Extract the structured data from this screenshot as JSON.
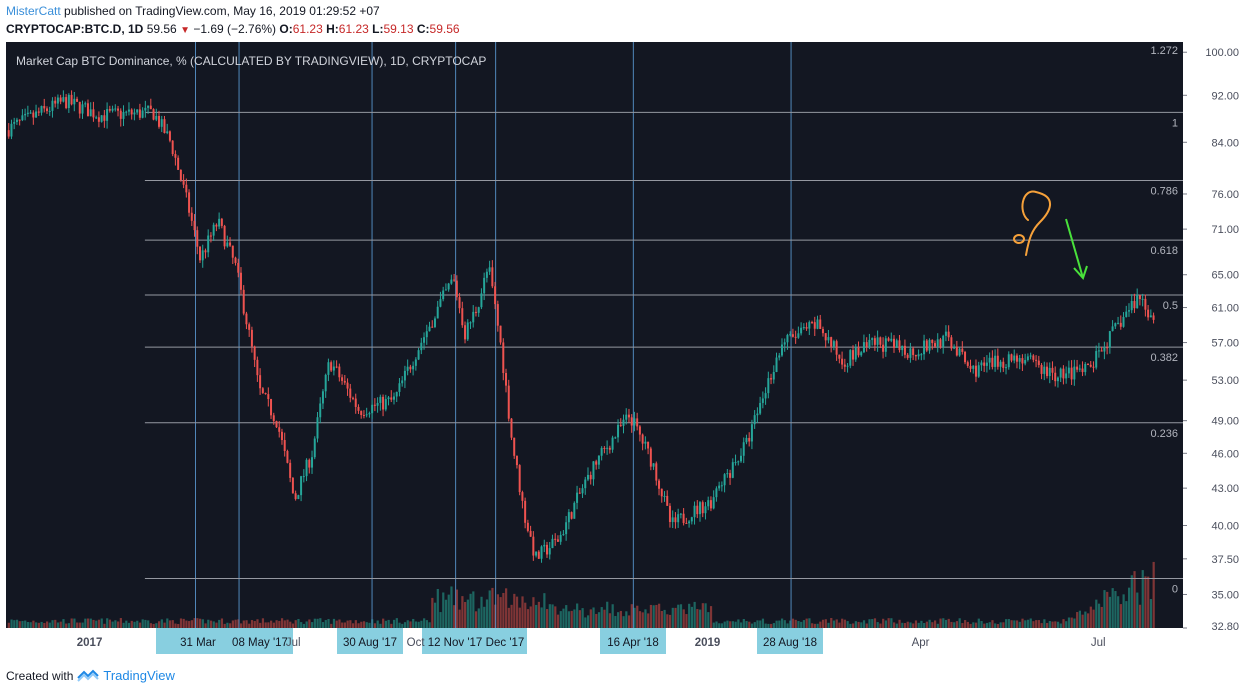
{
  "header": {
    "user": "MisterCatt",
    "published_text": "published on TradingView.com, May 16, 2019 01:29:52 +07",
    "symbol": "CRYPTOCAP:BTC.D, 1D",
    "last": "59.56",
    "change": "−1.69 (−2.76%)",
    "o_label": "O:",
    "o_value": "61.23",
    "h_label": "H:",
    "h_value": "61.23",
    "l_label": "L:",
    "l_value": "59.13",
    "c_label": "C:",
    "c_value": "59.56"
  },
  "footer": {
    "created_with": "Created with",
    "brand": "TradingView"
  },
  "colors": {
    "bg": "#131722",
    "up": "#26a69a",
    "down": "#ef5350",
    "fib": "#9598a1",
    "vline": "#5b9bd5",
    "callout_bg": "#88cfe0",
    "annotation_orange": "#f6a13a",
    "annotation_green": "#49e23b"
  },
  "chart_data": {
    "type": "candlestick",
    "title": "Market Cap BTC Dominance, % (CALCULATED BY TRADINGVIEW), 1D, CRYPTOCAP",
    "y_scale": "log",
    "ylim": [
      32.8,
      102
    ],
    "y_ticks": [
      "100.00",
      "92.00",
      "84.00",
      "76.00",
      "71.00",
      "65.00",
      "61.00",
      "57.00",
      "53.00",
      "49.00",
      "46.00",
      "43.00",
      "40.00",
      "37.50",
      "35.00",
      "32.80"
    ],
    "x_tick_labels": [
      "2017",
      "Jul",
      "Oct",
      "2019",
      "Apr",
      "Jul"
    ],
    "fib_levels": [
      {
        "label": "1.272",
        "value": 102.0
      },
      {
        "label": "1",
        "value": 89.0
      },
      {
        "label": "0.786",
        "value": 78.0
      },
      {
        "label": "0.618",
        "value": 69.5
      },
      {
        "label": "0.5",
        "value": 62.5
      },
      {
        "label": "0.382",
        "value": 56.5
      },
      {
        "label": "0.236",
        "value": 48.8
      },
      {
        "label": "0",
        "value": 36.1
      }
    ],
    "date_markers": [
      "31 Mar",
      "08 May '17",
      "30 Aug '17",
      "12 Nov '17",
      "Dec '17",
      "16 Apr '18",
      "28 Aug '18"
    ],
    "price_path": [
      {
        "t": 0,
        "v": 86
      },
      {
        "t": 0.03,
        "v": 89
      },
      {
        "t": 0.05,
        "v": 91
      },
      {
        "t": 0.08,
        "v": 88.5
      },
      {
        "t": 0.125,
        "v": 89
      },
      {
        "t": 0.14,
        "v": 84
      },
      {
        "t": 0.155,
        "v": 74
      },
      {
        "t": 0.165,
        "v": 67
      },
      {
        "t": 0.18,
        "v": 72
      },
      {
        "t": 0.195,
        "v": 66
      },
      {
        "t": 0.215,
        "v": 52
      },
      {
        "t": 0.23,
        "v": 49
      },
      {
        "t": 0.245,
        "v": 42
      },
      {
        "t": 0.26,
        "v": 46
      },
      {
        "t": 0.275,
        "v": 55
      },
      {
        "t": 0.3,
        "v": 50
      },
      {
        "t": 0.33,
        "v": 51
      },
      {
        "t": 0.36,
        "v": 59
      },
      {
        "t": 0.38,
        "v": 64.5
      },
      {
        "t": 0.39,
        "v": 58
      },
      {
        "t": 0.4,
        "v": 61
      },
      {
        "t": 0.41,
        "v": 66
      },
      {
        "t": 0.42,
        "v": 57
      },
      {
        "t": 0.43,
        "v": 47
      },
      {
        "t": 0.44,
        "v": 41
      },
      {
        "t": 0.45,
        "v": 37.5
      },
      {
        "t": 0.47,
        "v": 39
      },
      {
        "t": 0.5,
        "v": 45
      },
      {
        "t": 0.53,
        "v": 49.5
      },
      {
        "t": 0.55,
        "v": 45
      },
      {
        "t": 0.565,
        "v": 40
      },
      {
        "t": 0.6,
        "v": 42
      },
      {
        "t": 0.63,
        "v": 47
      },
      {
        "t": 0.66,
        "v": 57
      },
      {
        "t": 0.69,
        "v": 59
      },
      {
        "t": 0.71,
        "v": 55
      },
      {
        "t": 0.74,
        "v": 57
      },
      {
        "t": 0.77,
        "v": 56
      },
      {
        "t": 0.8,
        "v": 57.5
      },
      {
        "t": 0.82,
        "v": 54
      },
      {
        "t": 0.86,
        "v": 55.5
      },
      {
        "t": 0.89,
        "v": 53.5
      },
      {
        "t": 0.92,
        "v": 54
      },
      {
        "t": 0.94,
        "v": 58
      },
      {
        "t": 0.963,
        "v": 62.5
      },
      {
        "t": 0.975,
        "v": 59.56
      }
    ]
  }
}
